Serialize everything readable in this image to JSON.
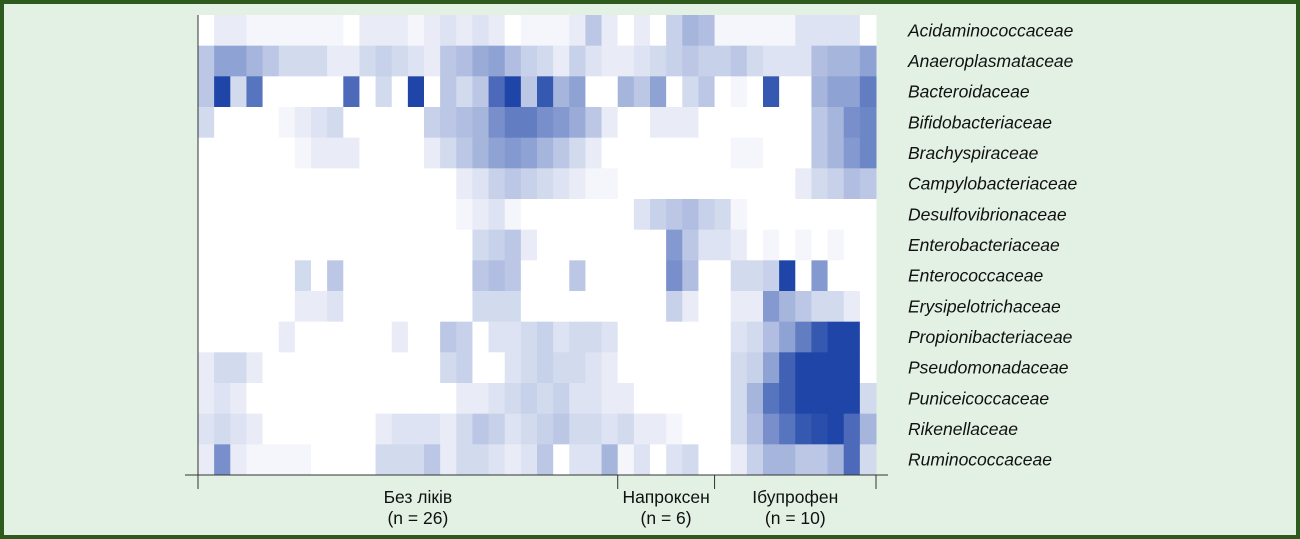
{
  "chart_data": {
    "type": "heatmap",
    "rows": [
      "Acidaminococcaceae",
      "Anaeroplasmataceae",
      "Bacteroidaceae",
      "Bifidobacteriaceae",
      "Brachyspiraceae",
      "Campylobacteriaceae",
      "Desulfovibrionaceae",
      "Enterobacteriaceae",
      "Enterococcaceae",
      "Erysipelotrichaceae",
      "Propionibacteriaceae",
      "Pseudomonadaceae",
      "Puniceicoccaceae",
      "Rikenellaceae",
      "Ruminococcaceae"
    ],
    "groups": [
      {
        "name": "Без ліків",
        "n_label": "(n = 26)",
        "count": 26
      },
      {
        "name": "Напроксен",
        "n_label": "(n = 6)",
        "count": 6
      },
      {
        "name": "Ібупрофен",
        "n_label": "(n = 10)",
        "count": 10
      }
    ],
    "color_scale": {
      "low": "#ffffff",
      "high": "#1f45a8"
    },
    "values": [
      [
        0,
        0.1,
        0.1,
        0.05,
        0.05,
        0.05,
        0.05,
        0.05,
        0.05,
        0,
        0.1,
        0.1,
        0.1,
        0.05,
        0.1,
        0.15,
        0.1,
        0.15,
        0.1,
        0,
        0.05,
        0.05,
        0.05,
        0.1,
        0.3,
        0.1,
        0,
        0.1,
        0,
        0.25,
        0.4,
        0.35,
        0.05,
        0.05,
        0.05,
        0.05,
        0.05,
        0.15,
        0.15,
        0.15,
        0.15,
        0
      ],
      [
        0.3,
        0.5,
        0.5,
        0.4,
        0.3,
        0.2,
        0.2,
        0.2,
        0.1,
        0.1,
        0.2,
        0.25,
        0.2,
        0.15,
        0.1,
        0.3,
        0.35,
        0.45,
        0.5,
        0.35,
        0.25,
        0.2,
        0.1,
        0.25,
        0.15,
        0.1,
        0.1,
        0.15,
        0.2,
        0.25,
        0.3,
        0.25,
        0.25,
        0.3,
        0.2,
        0.15,
        0.15,
        0.15,
        0.35,
        0.4,
        0.4,
        0.5
      ],
      [
        0.3,
        1.0,
        0.2,
        0.75,
        0,
        0,
        0,
        0,
        0,
        0.8,
        0,
        0.2,
        0,
        1.0,
        0,
        0.3,
        0.2,
        0.3,
        0.8,
        1.0,
        0.3,
        0.9,
        0.4,
        0.5,
        0,
        0,
        0.4,
        0.3,
        0.5,
        0,
        0.2,
        0.3,
        0,
        0.05,
        0,
        0.9,
        0,
        0,
        0.4,
        0.5,
        0.5,
        0.7
      ],
      [
        0.2,
        0,
        0,
        0,
        0,
        0.05,
        0.1,
        0.15,
        0.2,
        0,
        0,
        0,
        0,
        0,
        0.25,
        0.3,
        0.35,
        0.4,
        0.6,
        0.7,
        0.7,
        0.6,
        0.55,
        0.45,
        0.3,
        0.1,
        0,
        0,
        0.1,
        0.1,
        0.1,
        0,
        0,
        0,
        0,
        0,
        0,
        0,
        0.3,
        0.4,
        0.6,
        0.65
      ],
      [
        0,
        0,
        0,
        0,
        0,
        0,
        0.05,
        0.1,
        0.1,
        0.1,
        0,
        0,
        0,
        0,
        0.1,
        0.2,
        0.3,
        0.4,
        0.5,
        0.55,
        0.5,
        0.4,
        0.3,
        0.2,
        0.1,
        0,
        0,
        0,
        0,
        0,
        0,
        0,
        0,
        0.05,
        0.05,
        0,
        0,
        0,
        0.3,
        0.4,
        0.55,
        0.65
      ],
      [
        0,
        0,
        0,
        0,
        0,
        0,
        0,
        0,
        0,
        0,
        0,
        0,
        0,
        0,
        0,
        0,
        0.1,
        0.15,
        0.25,
        0.3,
        0.25,
        0.2,
        0.15,
        0.1,
        0.05,
        0.05,
        0,
        0,
        0,
        0,
        0,
        0,
        0,
        0,
        0,
        0,
        0,
        0.1,
        0.2,
        0.25,
        0.35,
        0.3
      ],
      [
        0,
        0,
        0,
        0,
        0,
        0,
        0,
        0,
        0,
        0,
        0,
        0,
        0,
        0,
        0,
        0,
        0.05,
        0.1,
        0.15,
        0.05,
        0,
        0,
        0,
        0,
        0,
        0,
        0,
        0.15,
        0.25,
        0.3,
        0.35,
        0.25,
        0.2,
        0.05,
        0,
        0,
        0,
        0,
        0,
        0,
        0,
        0
      ],
      [
        0,
        0,
        0,
        0,
        0,
        0,
        0,
        0,
        0,
        0,
        0,
        0,
        0,
        0,
        0,
        0,
        0,
        0.2,
        0.25,
        0.3,
        0.1,
        0,
        0,
        0,
        0,
        0,
        0,
        0,
        0,
        0.55,
        0.3,
        0.15,
        0.15,
        0.1,
        0,
        0.05,
        0,
        0.05,
        0,
        0.05,
        0,
        0
      ],
      [
        0,
        0,
        0,
        0,
        0,
        0,
        0.2,
        0,
        0.3,
        0,
        0,
        0,
        0,
        0,
        0,
        0,
        0,
        0.3,
        0.35,
        0.3,
        0,
        0,
        0,
        0.3,
        0,
        0,
        0,
        0,
        0,
        0.6,
        0.35,
        0,
        0,
        0.2,
        0.2,
        0.25,
        1.0,
        0,
        0.55,
        0,
        0,
        0
      ],
      [
        0,
        0,
        0,
        0,
        0,
        0,
        0.1,
        0.1,
        0.15,
        0,
        0,
        0,
        0,
        0,
        0,
        0,
        0,
        0.2,
        0.2,
        0.2,
        0,
        0,
        0,
        0,
        0,
        0,
        0,
        0,
        0,
        0.25,
        0.1,
        0,
        0,
        0.1,
        0.1,
        0.55,
        0.4,
        0.3,
        0.2,
        0.2,
        0.1,
        0
      ],
      [
        0,
        0,
        0,
        0,
        0,
        0.1,
        0,
        0,
        0,
        0,
        0,
        0,
        0.1,
        0,
        0,
        0.3,
        0.25,
        0,
        0.15,
        0.15,
        0.2,
        0.25,
        0.15,
        0.2,
        0.2,
        0.15,
        0,
        0,
        0,
        0,
        0,
        0,
        0,
        0.15,
        0.2,
        0.35,
        0.5,
        0.7,
        0.9,
        1.0,
        1.0,
        0
      ],
      [
        0.1,
        0.2,
        0.2,
        0.1,
        0,
        0,
        0,
        0,
        0,
        0,
        0,
        0,
        0,
        0,
        0,
        0.2,
        0.25,
        0,
        0,
        0.15,
        0.2,
        0.25,
        0.2,
        0.2,
        0.15,
        0.1,
        0,
        0,
        0,
        0,
        0,
        0,
        0,
        0.2,
        0.25,
        0.5,
        0.85,
        1.0,
        1.0,
        1.0,
        1.0,
        0
      ],
      [
        0.1,
        0.15,
        0.1,
        0,
        0,
        0,
        0,
        0,
        0,
        0,
        0,
        0,
        0,
        0,
        0,
        0,
        0.1,
        0.1,
        0.15,
        0.2,
        0.25,
        0.2,
        0.25,
        0.15,
        0.15,
        0.1,
        0.1,
        0,
        0,
        0,
        0,
        0,
        0,
        0.2,
        0.4,
        0.75,
        0.85,
        1.0,
        1.0,
        1.0,
        1.0,
        0.2
      ],
      [
        0.15,
        0.2,
        0.15,
        0.1,
        0,
        0,
        0,
        0,
        0,
        0,
        0,
        0.1,
        0.15,
        0.15,
        0.15,
        0.1,
        0.2,
        0.3,
        0.25,
        0.15,
        0.2,
        0.25,
        0.3,
        0.2,
        0.2,
        0.15,
        0.2,
        0.1,
        0.1,
        0.05,
        0,
        0,
        0,
        0.2,
        0.35,
        0.6,
        0.75,
        0.9,
        0.95,
        1.0,
        0.8,
        0.4
      ],
      [
        0.1,
        0.6,
        0.1,
        0.05,
        0.05,
        0.05,
        0.05,
        0,
        0,
        0,
        0,
        0.2,
        0.2,
        0.2,
        0.3,
        0.1,
        0.2,
        0.2,
        0.15,
        0.1,
        0.15,
        0.3,
        0,
        0.15,
        0.15,
        0.4,
        0.05,
        0.15,
        0,
        0.15,
        0.2,
        0,
        0,
        0.1,
        0.25,
        0.4,
        0.4,
        0.3,
        0.3,
        0.4,
        0.8,
        0.2
      ]
    ]
  }
}
